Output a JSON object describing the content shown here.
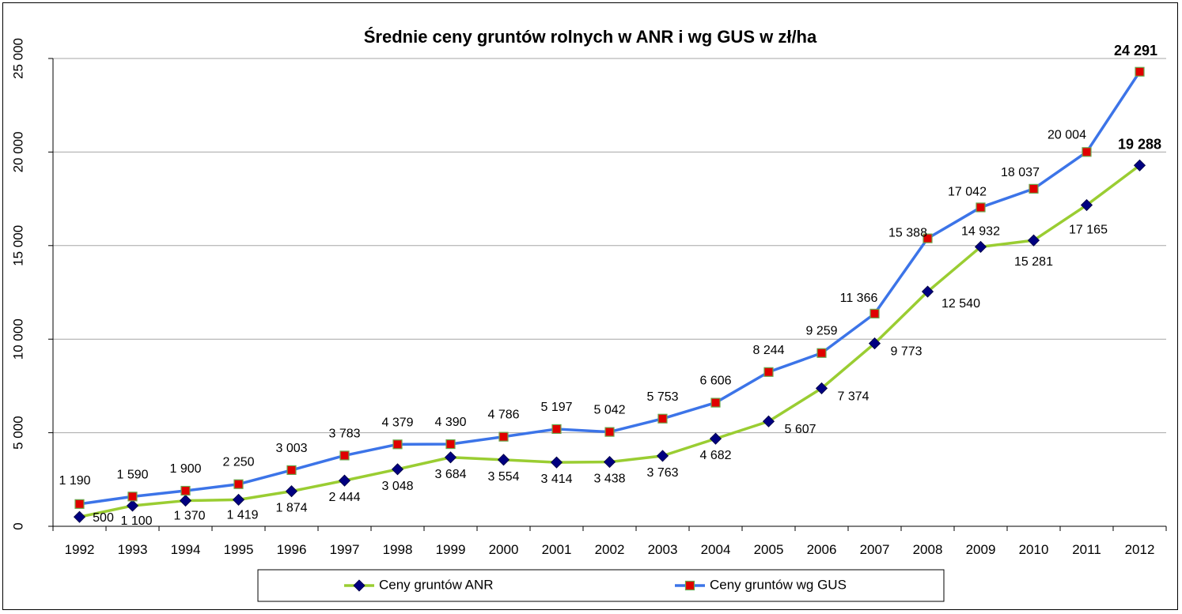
{
  "chart_data": {
    "type": "line",
    "title": "Średnie ceny gruntów rolnych w ANR i wg GUS w zł/ha",
    "xlabel": "",
    "ylabel": "",
    "categories": [
      "1992",
      "1993",
      "1994",
      "1995",
      "1996",
      "1997",
      "1998",
      "1999",
      "2000",
      "2001",
      "2002",
      "2003",
      "2004",
      "2005",
      "2006",
      "2007",
      "2008",
      "2009",
      "2010",
      "2011",
      "2012"
    ],
    "ylim": [
      0,
      25000
    ],
    "yticks": [
      0,
      5000,
      10000,
      15000,
      20000,
      25000
    ],
    "ytick_labels": [
      "0",
      "5 000",
      "10 000",
      "15 000",
      "20 000",
      "25 000"
    ],
    "grid": true,
    "legend_position": "bottom",
    "series": [
      {
        "name": "Ceny gruntów ANR",
        "line_color": "#9acd32",
        "marker": "diamond",
        "marker_color": "#000080",
        "values": [
          500,
          1100,
          1370,
          1419,
          1874,
          2444,
          3048,
          3684,
          3554,
          3414,
          3438,
          3763,
          4682,
          5607,
          7374,
          9773,
          12540,
          14932,
          15281,
          17165,
          19288
        ],
        "labels": [
          "500",
          "1 100",
          "1 370",
          "1 419",
          "1 874",
          "2 444",
          "3 048",
          "3 684",
          "3 554",
          "3 414",
          "3 438",
          "3 763",
          "4 682",
          "5 607",
          "7 374",
          "9 773",
          "12 540",
          "14 932",
          "15 281",
          "17 165",
          "19 288"
        ]
      },
      {
        "name": "Ceny gruntów wg GUS",
        "line_color": "#3c74e8",
        "marker": "square",
        "marker_color": "#e00000",
        "values": [
          1190,
          1590,
          1900,
          2250,
          3003,
          3783,
          4379,
          4390,
          4786,
          5197,
          5042,
          5753,
          6606,
          8244,
          9259,
          11366,
          15388,
          17042,
          18037,
          20004,
          24291
        ],
        "labels": [
          "1 190",
          "1 590",
          "1 900",
          "2 250",
          "3 003",
          "3 783",
          "4 379",
          "4 390",
          "4 786",
          "5 197",
          "5 042",
          "5 753",
          "6 606",
          "8 244",
          "9 259",
          "11 366",
          "15 388",
          "17 042",
          "18 037",
          "20 004",
          "24 291"
        ]
      }
    ]
  }
}
